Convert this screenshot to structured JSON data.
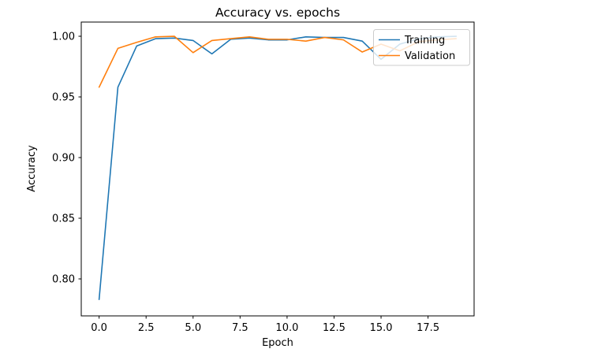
{
  "chart_data": {
    "type": "line",
    "title": "Accuracy vs. epochs",
    "xlabel": "Epoch",
    "ylabel": "Accuracy",
    "x": [
      0,
      1,
      2,
      3,
      4,
      5,
      6,
      7,
      8,
      9,
      10,
      11,
      12,
      13,
      14,
      15,
      16,
      17,
      18,
      19
    ],
    "series": [
      {
        "name": "Training",
        "color": "#1f77b4",
        "values": [
          0.783,
          0.958,
          0.992,
          0.998,
          0.9985,
          0.9965,
          0.9855,
          0.9975,
          0.9985,
          0.997,
          0.997,
          0.9995,
          0.999,
          0.999,
          0.996,
          0.981,
          0.9935,
          0.998,
          0.9995,
          1.0
        ]
      },
      {
        "name": "Validation",
        "color": "#ff7f0e",
        "values": [
          0.958,
          0.99,
          0.995,
          0.9995,
          1.0,
          0.9865,
          0.9965,
          0.998,
          0.9995,
          0.9975,
          0.9975,
          0.996,
          0.999,
          0.997,
          0.987,
          0.9935,
          0.988,
          0.9955,
          0.997,
          0.998
        ]
      }
    ],
    "xticks": [
      0.0,
      2.5,
      5.0,
      7.5,
      10.0,
      12.5,
      15.0,
      17.5
    ],
    "xtick_labels": [
      "0.0",
      "2.5",
      "5.0",
      "7.5",
      "10.0",
      "12.5",
      "15.0",
      "17.5"
    ],
    "yticks": [
      0.8,
      0.85,
      0.9,
      0.95,
      1.0
    ],
    "ytick_labels": [
      "0.80",
      "0.85",
      "0.90",
      "0.95",
      "1.00"
    ],
    "xlim": [
      -0.95,
      19.95
    ],
    "ylim": [
      0.7695,
      1.0117
    ],
    "grid": false,
    "legend": {
      "position": "upper right",
      "entries": [
        "Training",
        "Validation"
      ]
    },
    "colors": {
      "axes_edge": "#000000",
      "legend_border": "#cccccc",
      "background": "#ffffff"
    }
  }
}
